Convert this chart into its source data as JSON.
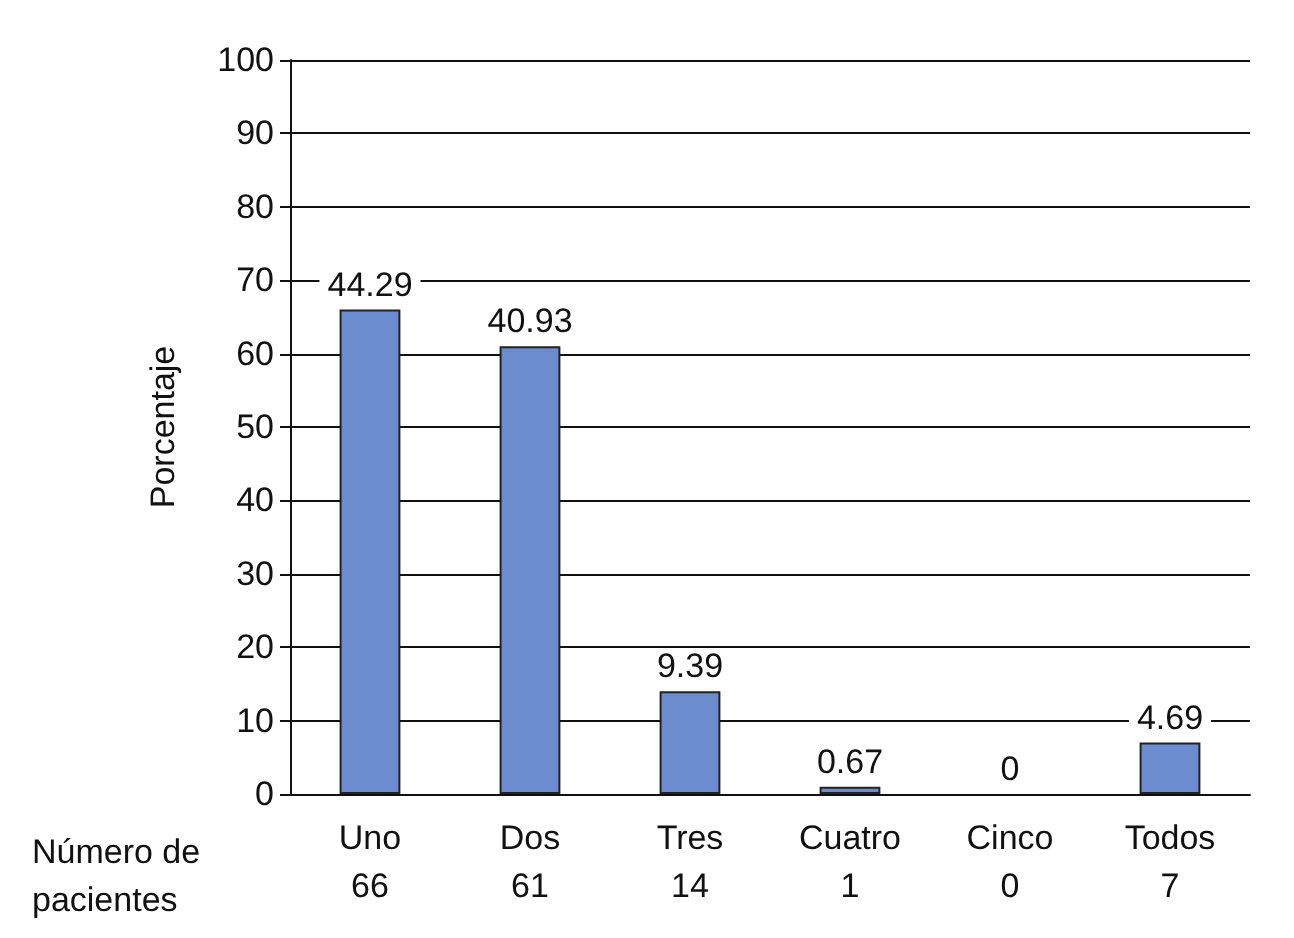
{
  "chart_data": {
    "type": "bar",
    "ylabel": "Porcentaje",
    "categories": [
      "Uno\n66",
      "Dos\n61",
      "Tres\n14",
      "Cuatro\n1",
      "Cinco\n0",
      "Todos\n7"
    ],
    "values": [
      66,
      61,
      14,
      1,
      0,
      7
    ],
    "color": "#6b8dd0",
    "ylim": [
      0,
      100
    ],
    "yticks": [
      0,
      10,
      20,
      30,
      40,
      50,
      60,
      70,
      80,
      90,
      100
    ],
    "grid": "y",
    "annotations": [
      {
        "text": "44.29",
        "x": "Uno\n66",
        "y": 66
      },
      {
        "text": "40.93",
        "x": "Dos\n61",
        "y": 61
      },
      {
        "text": "9.39",
        "x": "Tres\n14",
        "y": 14
      },
      {
        "text": "0.67",
        "x": "Cuatro\n1",
        "y": 1
      },
      {
        "text": "0",
        "x": "Cinco\n0",
        "y": 0
      },
      {
        "text": "4.69",
        "x": "Todos\n7",
        "y": 7
      },
      "Número de\npacientes"
    ]
  }
}
